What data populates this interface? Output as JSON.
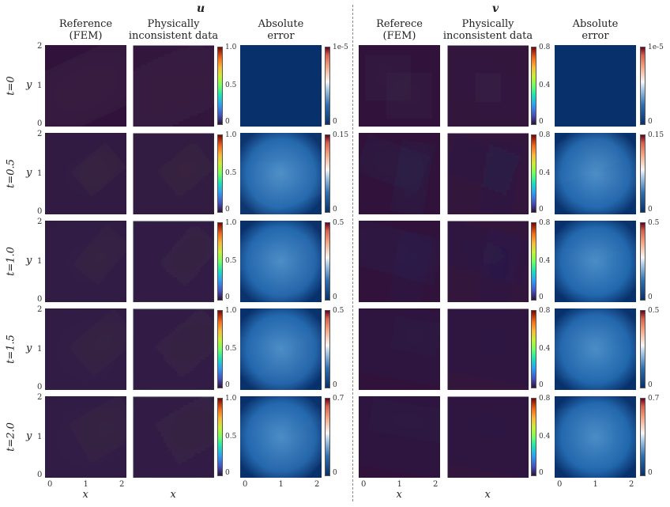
{
  "sections": {
    "u": "u",
    "v": "v"
  },
  "columns": [
    {
      "title": "Reference\n(FEM)",
      "key": "u_ref"
    },
    {
      "title": "Physically\ninconsistent data",
      "key": "u_data"
    },
    {
      "title": "Absolute\nerror",
      "key": "u_err"
    },
    {
      "title": "Referece\n(FEM)",
      "key": "v_ref"
    },
    {
      "title": "Physically\ninconsistent data",
      "key": "v_data"
    },
    {
      "title": "Absolute\nerror",
      "key": "v_err"
    }
  ],
  "rows": [
    "t=0",
    "t=0.5",
    "t=1.0",
    "t=1.5",
    "t=2.0"
  ],
  "axis": {
    "xlabel": "x",
    "ylabel": "y",
    "x_ticks": [
      "0",
      "1",
      "2"
    ],
    "y_ticks": [
      "2",
      "1",
      "0"
    ]
  },
  "colorbars": {
    "u_data": [
      [
        "1.0",
        "0.5",
        "0"
      ],
      [
        "1.0",
        "0.5",
        "0"
      ],
      [
        "1.0",
        "0.5",
        "0"
      ],
      [
        "1.0",
        "0.5",
        "0"
      ],
      [
        "1.0",
        "0.5",
        "0"
      ]
    ],
    "u_err": [
      [
        "1e-5",
        "0"
      ],
      [
        "0.15",
        "0"
      ],
      [
        "0.5",
        "0"
      ],
      [
        "0.5",
        "0"
      ],
      [
        "0.7",
        "0"
      ]
    ],
    "v_data": [
      [
        "0.8",
        "0.4",
        "0"
      ],
      [
        "0.8",
        "0.4",
        "0"
      ],
      [
        "0.8",
        "0.4",
        "0"
      ],
      [
        "0.8",
        "0.4",
        "0"
      ],
      [
        "0.8",
        "0.4",
        "0"
      ]
    ],
    "v_err": [
      [
        "1e-5",
        "0"
      ],
      [
        "0.15",
        "0"
      ],
      [
        "0.5",
        "0"
      ],
      [
        "0.5",
        "0"
      ],
      [
        "0.7",
        "0"
      ]
    ]
  },
  "colors": {
    "jet_bg": "#30123b",
    "err_bg": "#08306b"
  }
}
